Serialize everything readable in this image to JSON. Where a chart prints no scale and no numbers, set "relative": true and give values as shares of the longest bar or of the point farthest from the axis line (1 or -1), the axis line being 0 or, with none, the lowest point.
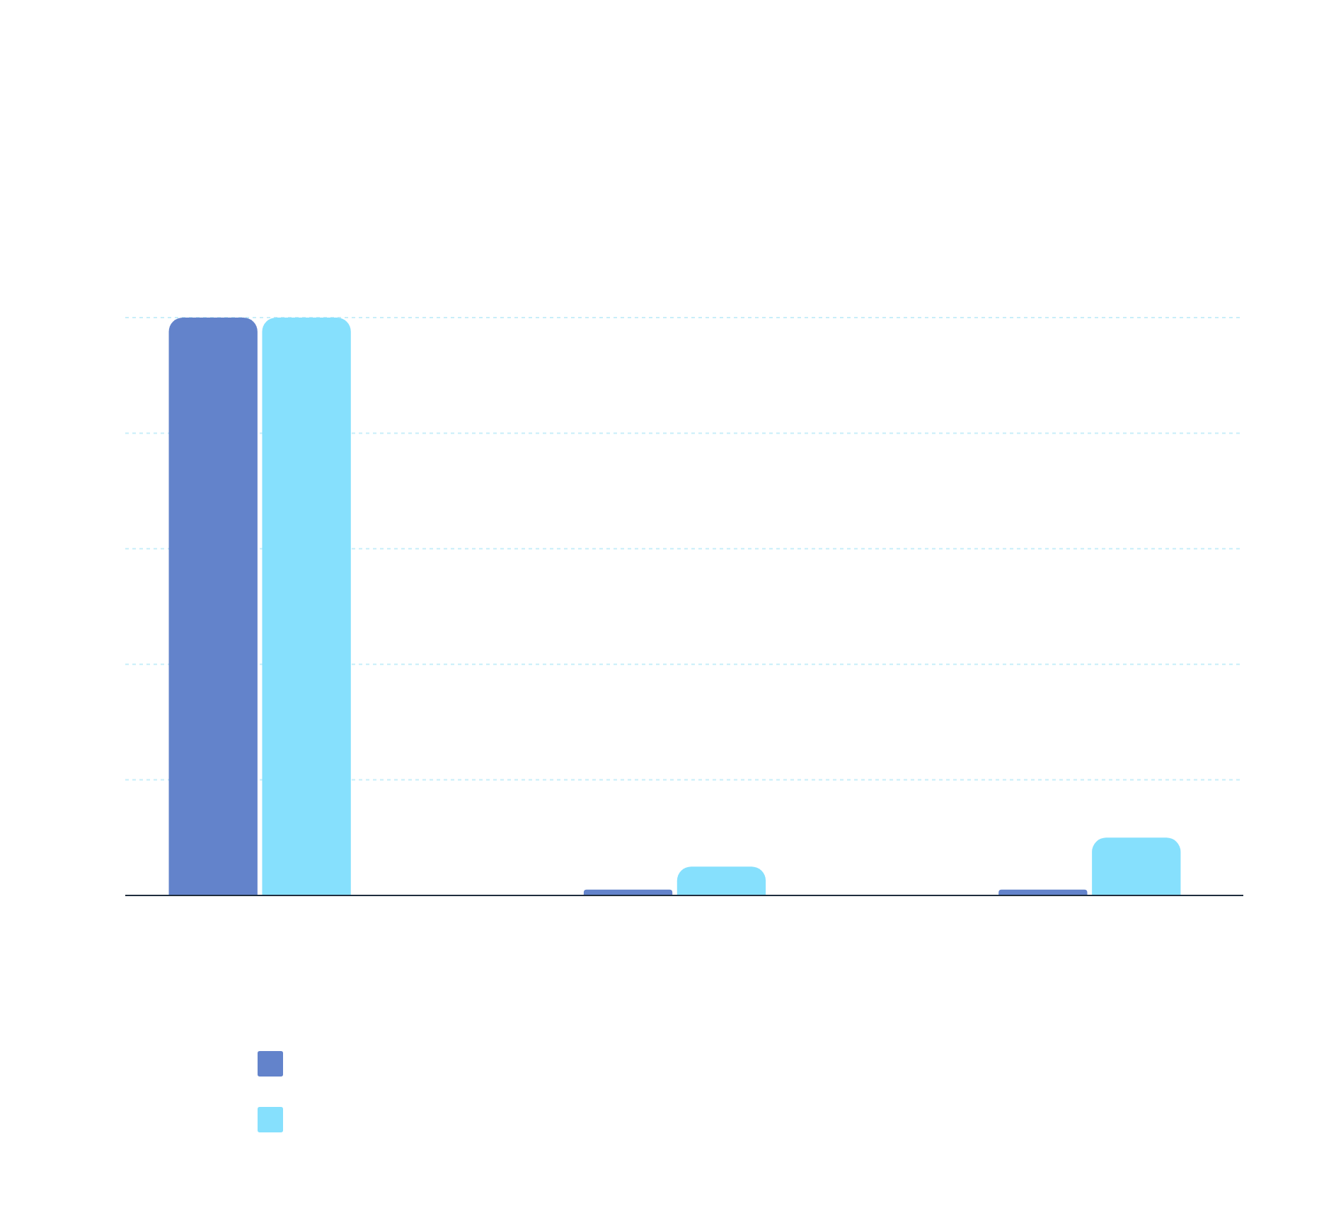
{
  "chart_data": {
    "type": "bar",
    "relative": true,
    "categories": [
      null,
      null,
      null
    ],
    "series": [
      {
        "color": "#6383cb",
        "values": [
          1,
          0.01,
          0.01
        ]
      },
      {
        "color": "#86e0fd",
        "values": [
          1,
          0.05,
          0.1
        ]
      }
    ],
    "ref_lines": [
      {
        "axis": "y",
        "value": 0.2,
        "color": "#c8eef9",
        "line_style": "dashed"
      },
      {
        "axis": "y",
        "value": 0.4,
        "color": "#c8eef9",
        "line_style": "dashed"
      },
      {
        "axis": "y",
        "value": 0.6,
        "color": "#c8eef9",
        "line_style": "dashed"
      },
      {
        "axis": "y",
        "value": 0.8,
        "color": "#c8eef9",
        "line_style": "dashed"
      },
      {
        "axis": "y",
        "value": 1,
        "color": "#c8eef9",
        "line_style": "dashed"
      }
    ]
  }
}
